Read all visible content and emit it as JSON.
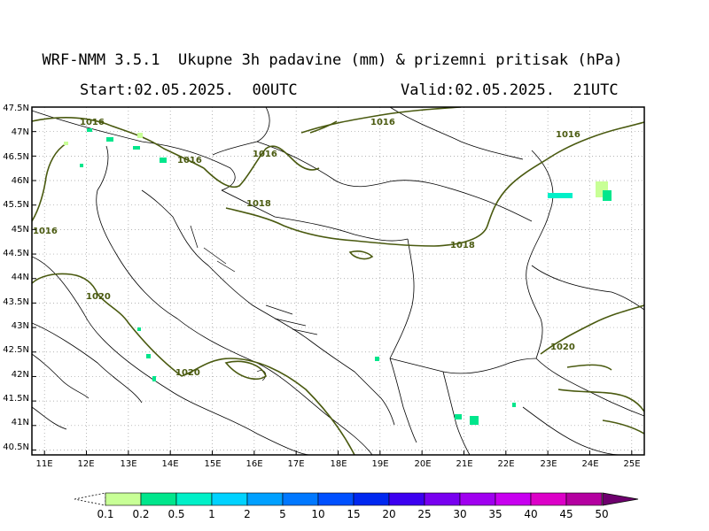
{
  "header": {
    "title": "WRF-NMM 3.5.1  Ukupne 3h padavine (mm) & prizemni pritisak (hPa)",
    "start": "Start:02.05.2025.  00UTC",
    "valid": "Valid:02.05.2025.  21UTC"
  },
  "map": {
    "lon_range": [
      10.7,
      25.3
    ],
    "lat_range": [
      40.4,
      47.5
    ],
    "lat_ticks": [
      "47.5N",
      "47N",
      "46.5N",
      "46N",
      "45.5N",
      "45N",
      "44.5N",
      "44N",
      "43.5N",
      "43N",
      "42.5N",
      "42N",
      "41.5N",
      "41N",
      "40.5N"
    ],
    "lon_ticks": [
      "11E",
      "12E",
      "13E",
      "14E",
      "15E",
      "16E",
      "17E",
      "18E",
      "19E",
      "20E",
      "21E",
      "22E",
      "23E",
      "24E",
      "25E"
    ],
    "grid": true,
    "isobar_color": "#4a5a10",
    "isobar_labels": [
      "1016",
      "1016",
      "1016",
      "1016",
      "1016",
      "1018",
      "1016",
      "1018",
      "1020",
      "1020",
      "1020"
    ]
  },
  "colorbar": {
    "labels": [
      "0.1",
      "0.2",
      "0.5",
      "1",
      "2",
      "5",
      "10",
      "15",
      "20",
      "25",
      "30",
      "35",
      "40",
      "45",
      "50"
    ],
    "colors": [
      "#c8ff96",
      "#00e68c",
      "#00f0c8",
      "#00d2ff",
      "#00a0ff",
      "#0078ff",
      "#0050ff",
      "#0028f0",
      "#3c00f0",
      "#7800f0",
      "#a000f0",
      "#c800f0",
      "#dc00c8",
      "#b400a0",
      "#8c0078",
      "#6e006e"
    ]
  }
}
